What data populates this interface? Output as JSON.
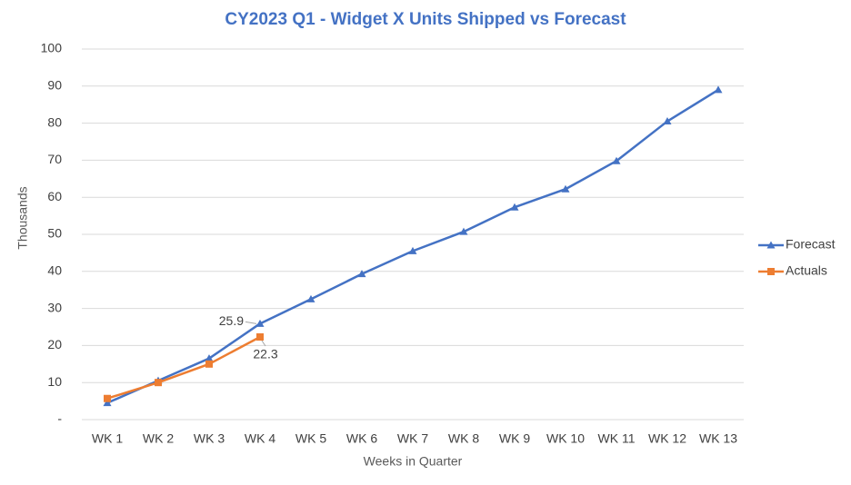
{
  "chart_data": {
    "type": "line",
    "title": "CY2023 Q1 - Widget X Units Shipped vs Forecast",
    "x_label": "Weeks in Quarter",
    "y_label": "Thousands",
    "categories": [
      "WK 1",
      "WK 2",
      "WK 3",
      "WK 4",
      "WK 5",
      "WK 6",
      "WK 7",
      "WK 8",
      "WK 9",
      "WK 10",
      "WK 11",
      "WK 12",
      "WK 13"
    ],
    "series": [
      {
        "name": "Forecast",
        "color": "#4472c4",
        "marker": "triangle",
        "values": [
          4.5,
          10.5,
          16.5,
          25.9,
          32.5,
          39.3,
          45.5,
          50.7,
          57.3,
          62.2,
          69.8,
          80.5,
          89
        ]
      },
      {
        "name": "Actuals",
        "color": "#ed7d31",
        "marker": "square",
        "values": [
          5.7,
          10,
          15,
          22.3,
          null,
          null,
          null,
          null,
          null,
          null,
          null,
          null,
          null
        ]
      }
    ],
    "ylim": [
      0,
      100
    ],
    "yticks": [
      {
        "value": 0,
        "label": "-"
      },
      10,
      20,
      30,
      40,
      50,
      60,
      70,
      80,
      90,
      100
    ],
    "grid": true,
    "legend": "right"
  }
}
